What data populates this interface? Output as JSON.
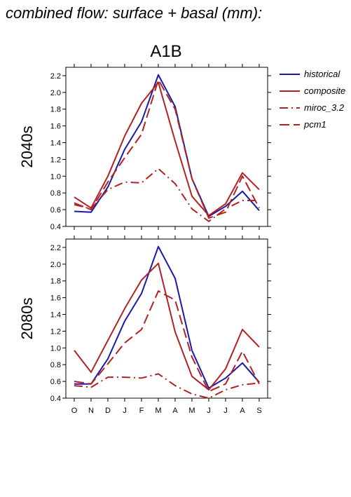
{
  "page": {
    "title": "combined flow: surface + basal (mm):"
  },
  "chart_data": {
    "type": "line",
    "title": "A1B",
    "categories": [
      "O",
      "N",
      "D",
      "J",
      "F",
      "M",
      "A",
      "M",
      "J",
      "J",
      "A",
      "S"
    ],
    "ylim": [
      0.4,
      2.3
    ],
    "yticks": [
      "0.4",
      "0.6",
      "0.8",
      "1.0",
      "1.2",
      "1.4",
      "1.6",
      "1.8",
      "2.0",
      "2.2"
    ],
    "grid": false,
    "legend_position": "right",
    "legend": [
      {
        "name": "historical",
        "color": "#1a1aa8",
        "dash": "solid"
      },
      {
        "name": "composite",
        "color": "#b22222",
        "dash": "solid"
      },
      {
        "name": "miroc_3.2",
        "color": "#b22222",
        "dash": "dashdot"
      },
      {
        "name": "pcm1",
        "color": "#b22222",
        "dash": "dashed"
      }
    ],
    "panels": [
      {
        "label": "2040s",
        "series": [
          {
            "name": "historical",
            "values": [
              0.58,
              0.57,
              0.87,
              1.32,
              1.65,
              2.21,
              1.83,
              0.97,
              0.52,
              0.64,
              0.82,
              0.59
            ]
          },
          {
            "name": "composite",
            "values": [
              0.75,
              0.62,
              1.0,
              1.48,
              1.87,
              2.12,
              1.42,
              0.76,
              0.53,
              0.67,
              1.04,
              0.84
            ]
          },
          {
            "name": "miroc_3.2",
            "values": [
              0.66,
              0.61,
              0.84,
              0.93,
              0.92,
              1.09,
              0.91,
              0.61,
              0.46,
              0.61,
              0.71,
              0.71
            ]
          },
          {
            "name": "pcm1",
            "values": [
              0.68,
              0.6,
              0.93,
              1.22,
              1.5,
              2.15,
              1.8,
              0.97,
              0.5,
              0.57,
              1.0,
              0.62
            ]
          }
        ]
      },
      {
        "label": "2080s",
        "series": [
          {
            "name": "historical",
            "values": [
              0.57,
              0.57,
              0.87,
              1.32,
              1.65,
              2.21,
              1.83,
              0.97,
              0.52,
              0.64,
              0.82,
              0.59
            ]
          },
          {
            "name": "composite",
            "values": [
              0.97,
              0.71,
              1.09,
              1.47,
              1.81,
              2.01,
              1.19,
              0.66,
              0.5,
              0.75,
              1.22,
              1.01
            ]
          },
          {
            "name": "miroc_3.2",
            "values": [
              0.55,
              0.53,
              0.65,
              0.65,
              0.64,
              0.69,
              0.55,
              0.45,
              0.4,
              0.5,
              0.56,
              0.58
            ]
          },
          {
            "name": "pcm1",
            "values": [
              0.6,
              0.57,
              0.81,
              1.06,
              1.22,
              1.68,
              1.57,
              0.89,
              0.48,
              0.57,
              0.96,
              0.57
            ]
          }
        ]
      }
    ]
  }
}
